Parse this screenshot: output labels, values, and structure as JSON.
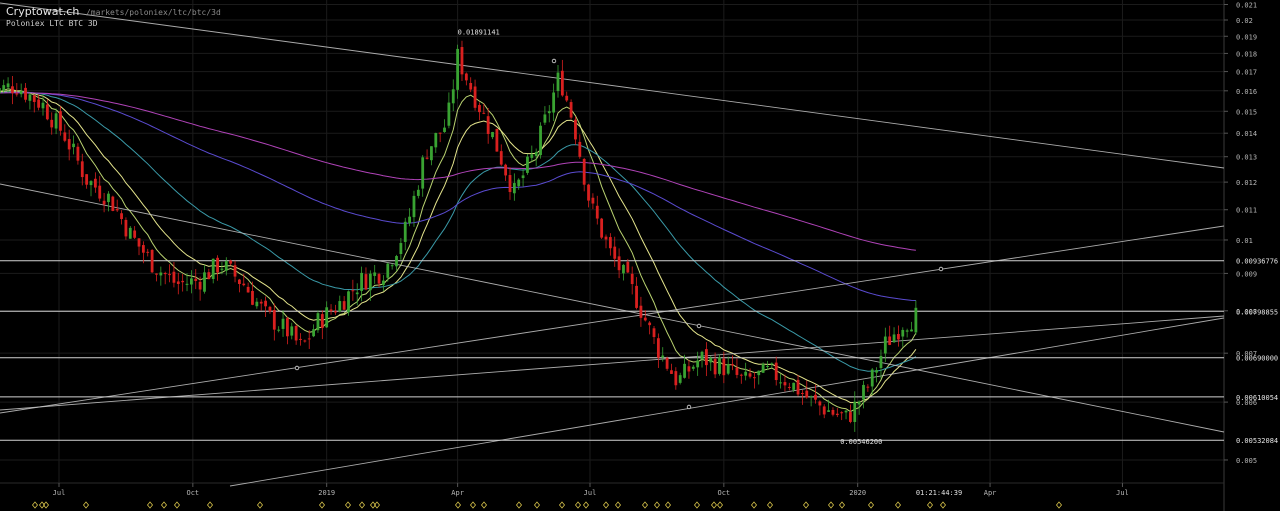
{
  "header": {
    "site": "Cryptowat.ch",
    "path": "/markets/poloniex/ltc/btc/3d",
    "market": "Poloniex LTC BTC 3D"
  },
  "colors": {
    "background": "#000000",
    "grid": "#1b1b1b",
    "up": "#39a332",
    "down": "#d9201f",
    "ema_short": "#b9d270",
    "ema_mid": "#e4e48c",
    "ema_long": "#3a9aa8",
    "ema_200": "#5a4bd0",
    "ema_300": "#b043b8",
    "trendline": "#c9c9c9",
    "axis_text": "#b7b7b7"
  },
  "chart_data": {
    "type": "candlestick",
    "y_scale": "log",
    "ylim": [
      0.00465,
      0.0213
    ],
    "y_ticks": [
      "0.021",
      "0.02",
      "0.019",
      "0.018",
      "0.017",
      "0.016",
      "0.015",
      "0.014",
      "0.013",
      "0.012",
      "0.011",
      "0.01",
      "0.009",
      "0.008",
      "0.007",
      "0.006",
      "0.005"
    ],
    "x_ticks": [
      "Jul",
      "Oct",
      "2019",
      "Apr",
      "Jul",
      "Oct",
      "2020",
      "Apr",
      "Jul"
    ],
    "time_readout": "01:21:44:39",
    "horizontal_levels": [
      {
        "label": "0.00936776",
        "value": 0.00936776
      },
      {
        "label": "0.00798855",
        "value": 0.00798855
      },
      {
        "label": "0.00690000",
        "value": 0.0069
      },
      {
        "label": "0.00610054",
        "value": 0.00610054
      },
      {
        "label": "0.00532084",
        "value": 0.00532084
      }
    ],
    "annotations": [
      {
        "label": "0.01891141",
        "value": 0.01891141,
        "x_date": "2019-04-01"
      },
      {
        "label": "0.00546200",
        "value": 0.005462,
        "x_date": "2019-12-20"
      }
    ],
    "series": [
      {
        "name": "LTC/BTC",
        "price_path": [
          [
            "2018-05-15",
            0.0159
          ],
          [
            "2018-06-01",
            0.0163
          ],
          [
            "2018-06-20",
            0.0153
          ],
          [
            "2018-07-05",
            0.0139
          ],
          [
            "2018-07-20",
            0.0121
          ],
          [
            "2018-08-05",
            0.0114
          ],
          [
            "2018-08-20",
            0.0101
          ],
          [
            "2018-09-05",
            0.0092
          ],
          [
            "2018-09-20",
            0.0087
          ],
          [
            "2018-10-05",
            0.0088
          ],
          [
            "2018-10-20",
            0.0093
          ],
          [
            "2018-11-05",
            0.0087
          ],
          [
            "2018-11-20",
            0.0079
          ],
          [
            "2018-12-05",
            0.0075
          ],
          [
            "2018-12-15",
            0.0071
          ],
          [
            "2018-12-25",
            0.0077
          ],
          [
            "2019-01-10",
            0.0082
          ],
          [
            "2019-01-25",
            0.0088
          ],
          [
            "2019-02-10",
            0.0091
          ],
          [
            "2019-02-25",
            0.0104
          ],
          [
            "2019-03-10",
            0.0132
          ],
          [
            "2019-03-25",
            0.0145
          ],
          [
            "2019-04-01",
            0.0178
          ],
          [
            "2019-04-10",
            0.0162
          ],
          [
            "2019-04-25",
            0.0139
          ],
          [
            "2019-05-10",
            0.0116
          ],
          [
            "2019-05-25",
            0.0133
          ],
          [
            "2019-06-10",
            0.0168
          ],
          [
            "2019-06-20",
            0.0144
          ],
          [
            "2019-07-01",
            0.0112
          ],
          [
            "2019-07-15",
            0.0096
          ],
          [
            "2019-08-01",
            0.0084
          ],
          [
            "2019-08-15",
            0.0072
          ],
          [
            "2019-08-30",
            0.0064
          ],
          [
            "2019-09-15",
            0.0069
          ],
          [
            "2019-10-01",
            0.0067
          ],
          [
            "2019-10-15",
            0.0064
          ],
          [
            "2019-11-01",
            0.0066
          ],
          [
            "2019-11-15",
            0.0064
          ],
          [
            "2019-12-01",
            0.006
          ],
          [
            "2019-12-15",
            0.0058
          ],
          [
            "2019-12-25",
            0.0057
          ],
          [
            "2020-01-10",
            0.0064
          ],
          [
            "2020-01-20",
            0.0072
          ],
          [
            "2020-02-01",
            0.0077
          ],
          [
            "2020-02-12",
            0.0079
          ]
        ]
      }
    ]
  }
}
